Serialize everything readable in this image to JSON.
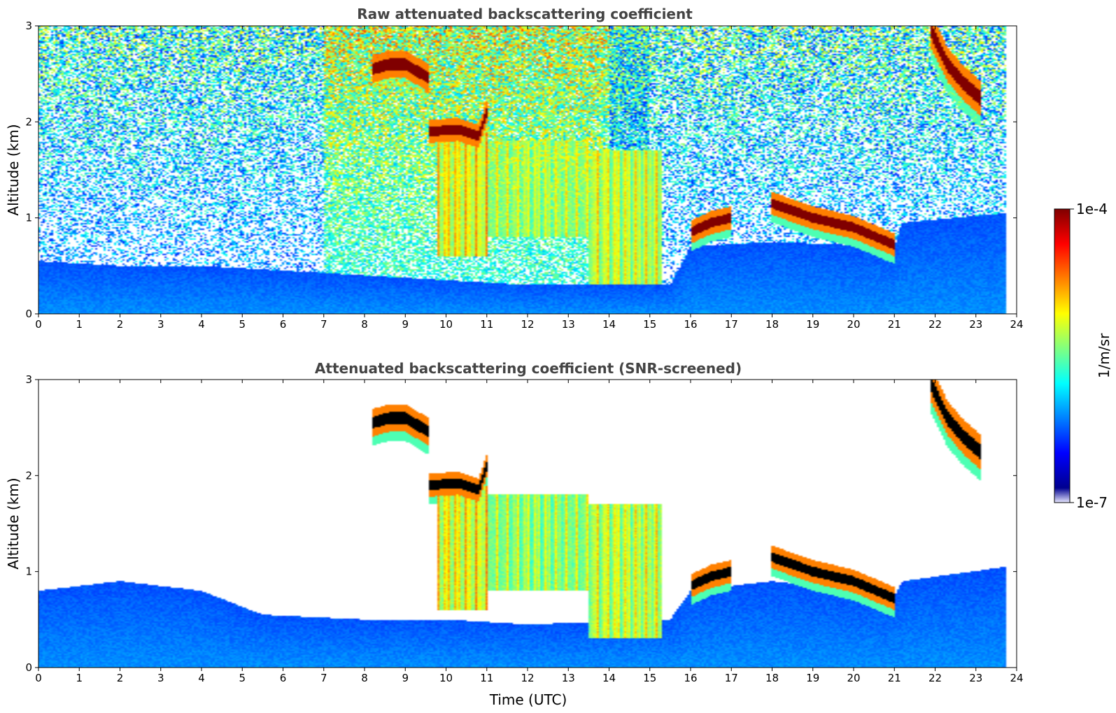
{
  "colors": {
    "jet": [
      "#00008f",
      "#0000ff",
      "#0080ff",
      "#00ffff",
      "#80ff80",
      "#ffff00",
      "#ff8000",
      "#ff0000",
      "#800000"
    ],
    "low_end": "#e8e8ff",
    "saturated_screened": "#000000"
  },
  "colorbar": {
    "max_label": "1e-4",
    "min_label": "1e-7",
    "unit_label": "1/m/sr"
  },
  "chart_data": [
    {
      "type": "heatmap",
      "title": "Raw attenuated backscattering coefficient",
      "xlabel": "",
      "ylabel": "Altitude (km)",
      "xlim": [
        0,
        24
      ],
      "ylim": [
        0,
        3
      ],
      "x_ticks": [
        "0",
        "1",
        "2",
        "3",
        "4",
        "5",
        "6",
        "7",
        "8",
        "9",
        "10",
        "11",
        "12",
        "13",
        "14",
        "15",
        "16",
        "17",
        "18",
        "19",
        "20",
        "21",
        "22",
        "23",
        "24"
      ],
      "y_ticks": [
        "0",
        "1",
        "2",
        "3"
      ],
      "data_end_hour": 23.75,
      "boundary_layer_km": [
        [
          0,
          0.55
        ],
        [
          2,
          0.5
        ],
        [
          4,
          0.5
        ],
        [
          6,
          0.45
        ],
        [
          8,
          0.4
        ],
        [
          10,
          0.35
        ],
        [
          12,
          0.3
        ],
        [
          15.5,
          0.3
        ],
        [
          16,
          0.7
        ],
        [
          18,
          0.75
        ],
        [
          21,
          0.7
        ],
        [
          21.2,
          0.95
        ],
        [
          23.75,
          1.05
        ]
      ],
      "cloud_layers": [
        {
          "name": "altocumulus-a",
          "t_km": [
            [
              8.2,
              2.55
            ],
            [
              8.6,
              2.6
            ],
            [
              9.0,
              2.6
            ],
            [
              9.6,
              2.45
            ]
          ],
          "thickness_km": 0.12,
          "intensity": 1.0
        },
        {
          "name": "altocumulus-b",
          "t_km": [
            [
              9.6,
              1.9
            ],
            [
              10.3,
              1.92
            ],
            [
              10.8,
              1.85
            ],
            [
              11.0,
              2.1
            ]
          ],
          "thickness_km": 0.1,
          "intensity": 1.0
        },
        {
          "name": "stratocumulus-top",
          "t_km": [
            [
              16.0,
              0.85
            ],
            [
              16.5,
              0.95
            ],
            [
              17.0,
              1.0
            ]
          ],
          "thickness_km": 0.1,
          "intensity": 1.0
        },
        {
          "name": "stratocumulus-long",
          "t_km": [
            [
              18.0,
              1.15
            ],
            [
              19.0,
              1.0
            ],
            [
              20.0,
              0.9
            ],
            [
              21.0,
              0.72
            ]
          ],
          "thickness_km": 0.1,
          "intensity": 1.0
        },
        {
          "name": "late-cirrus",
          "t_km": [
            [
              21.9,
              2.95
            ],
            [
              22.3,
              2.6
            ],
            [
              22.7,
              2.4
            ],
            [
              23.1,
              2.25
            ]
          ],
          "thickness_km": 0.15,
          "intensity": 1.0
        }
      ],
      "virga_regions": [
        {
          "t_start": 9.8,
          "t_end": 11.0,
          "top_km": 1.9,
          "bottom_km": 0.6,
          "intensity": 0.75
        },
        {
          "t_start": 11.0,
          "t_end": 13.5,
          "top_km": 1.8,
          "bottom_km": 0.8,
          "intensity": 0.65
        },
        {
          "t_start": 13.5,
          "t_end": 15.3,
          "top_km": 1.7,
          "bottom_km": 0.3,
          "intensity": 0.7
        }
      ],
      "screened": false
    },
    {
      "type": "heatmap",
      "title": "Attenuated backscattering coefficient (SNR-screened)",
      "xlabel": "Time (UTC)",
      "ylabel": "Altitude (km)",
      "xlim": [
        0,
        24
      ],
      "ylim": [
        0,
        3
      ],
      "x_ticks": [
        "0",
        "1",
        "2",
        "3",
        "4",
        "5",
        "6",
        "7",
        "8",
        "9",
        "10",
        "11",
        "12",
        "13",
        "14",
        "15",
        "16",
        "17",
        "18",
        "19",
        "20",
        "21",
        "22",
        "23",
        "24"
      ],
      "y_ticks": [
        "0",
        "1",
        "2",
        "3"
      ],
      "data_end_hour": 23.75,
      "boundary_layer_km": [
        [
          0,
          0.8
        ],
        [
          2,
          0.9
        ],
        [
          4,
          0.8
        ],
        [
          5.5,
          0.55
        ],
        [
          8,
          0.5
        ],
        [
          10,
          0.5
        ],
        [
          12,
          0.45
        ],
        [
          15.5,
          0.5
        ],
        [
          16,
          0.8
        ],
        [
          18,
          0.9
        ],
        [
          21,
          0.75
        ],
        [
          21.2,
          0.9
        ],
        [
          23.75,
          1.05
        ]
      ],
      "cloud_layers": [
        {
          "name": "altocumulus-a",
          "t_km": [
            [
              8.2,
              2.55
            ],
            [
              8.6,
              2.6
            ],
            [
              9.0,
              2.6
            ],
            [
              9.6,
              2.45
            ]
          ],
          "thickness_km": 0.12,
          "intensity": 1.0
        },
        {
          "name": "altocumulus-b",
          "t_km": [
            [
              9.6,
              1.9
            ],
            [
              10.3,
              1.92
            ],
            [
              10.8,
              1.85
            ],
            [
              11.0,
              2.1
            ]
          ],
          "thickness_km": 0.1,
          "intensity": 1.0
        },
        {
          "name": "stratocumulus-top",
          "t_km": [
            [
              16.0,
              0.85
            ],
            [
              16.5,
              0.95
            ],
            [
              17.0,
              1.0
            ]
          ],
          "thickness_km": 0.1,
          "intensity": 1.0
        },
        {
          "name": "stratocumulus-long",
          "t_km": [
            [
              18.0,
              1.15
            ],
            [
              19.0,
              1.0
            ],
            [
              20.0,
              0.9
            ],
            [
              21.0,
              0.72
            ]
          ],
          "thickness_km": 0.1,
          "intensity": 1.0
        },
        {
          "name": "late-cirrus",
          "t_km": [
            [
              21.9,
              2.95
            ],
            [
              22.3,
              2.6
            ],
            [
              22.7,
              2.4
            ],
            [
              23.1,
              2.25
            ]
          ],
          "thickness_km": 0.15,
          "intensity": 1.0
        }
      ],
      "virga_regions": [
        {
          "t_start": 9.8,
          "t_end": 11.0,
          "top_km": 1.9,
          "bottom_km": 0.6,
          "intensity": 0.75
        },
        {
          "t_start": 11.0,
          "t_end": 13.5,
          "top_km": 1.8,
          "bottom_km": 0.8,
          "intensity": 0.65
        },
        {
          "t_start": 13.5,
          "t_end": 15.3,
          "top_km": 1.7,
          "bottom_km": 0.3,
          "intensity": 0.7
        }
      ],
      "screened": true
    }
  ]
}
